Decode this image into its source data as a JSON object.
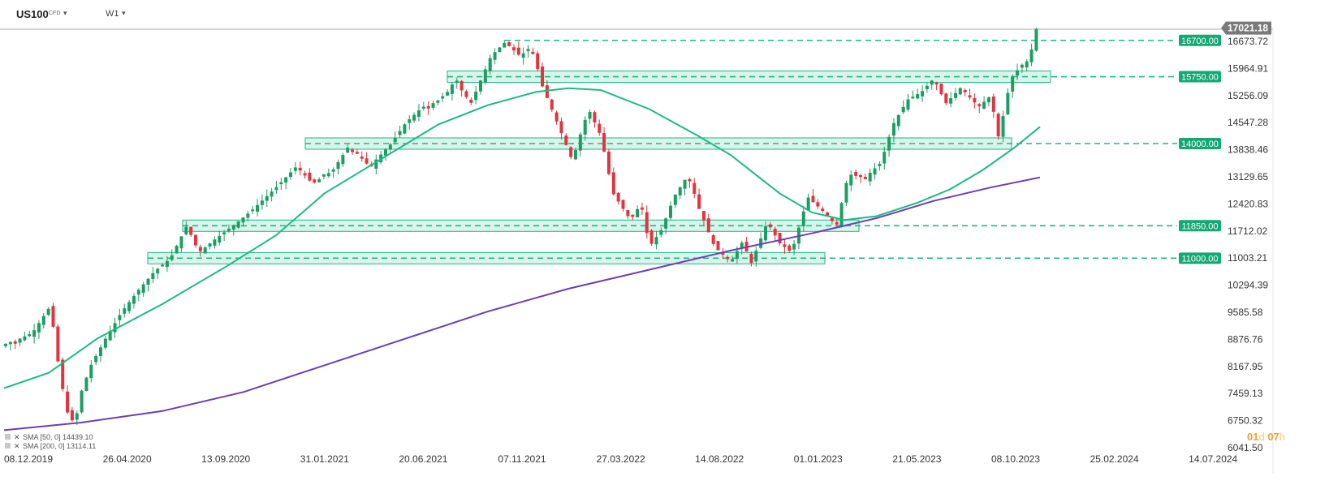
{
  "header": {
    "symbol": "US100",
    "symbol_type": "CFD",
    "timeframe": "W1"
  },
  "timer": {
    "d_value": "01",
    "d_unit": "d",
    "h_value": "07",
    "h_unit": "h"
  },
  "legend": [
    {
      "label": "SMA [50, 0] 14439.10",
      "color": "#1db983"
    },
    {
      "label": "SMA [200, 0] 13114.11",
      "color": "#6a3fb8"
    }
  ],
  "chart_data": {
    "type": "candlestick",
    "symbol": "US100",
    "timeframe": "W1",
    "current_price": 17021.18,
    "y_axis_ticks": [
      16673.72,
      15964.91,
      15256.09,
      14547.28,
      13838.46,
      13129.65,
      12420.83,
      11712.02,
      11003.21,
      10294.39,
      9585.58,
      8876.76,
      8167.95,
      7459.13,
      6750.32,
      6041.5
    ],
    "ylim": [
      6041.5,
      17200
    ],
    "x_axis_ticks": [
      "08.12.2019",
      "26.04.2020",
      "13.09.2020",
      "31.01.2021",
      "20.06.2021",
      "07.11.2021",
      "27.03.2022",
      "14.08.2022",
      "01.01.2023",
      "21.05.2023",
      "08.10.2023",
      "25.02.2024",
      "14.07.2024"
    ],
    "levels": [
      16700.0,
      15750.0,
      14000.0,
      11850.0,
      11000.0
    ],
    "sma": [
      {
        "name": "SMA [50, 0]",
        "last": 14439.1,
        "color": "#1db983"
      },
      {
        "name": "SMA [200, 0]",
        "last": 13114.11,
        "color": "#6a3fb8"
      }
    ],
    "colors": {
      "up": "#1b9e63",
      "down": "#e0343f",
      "level": "#1db983"
    }
  }
}
